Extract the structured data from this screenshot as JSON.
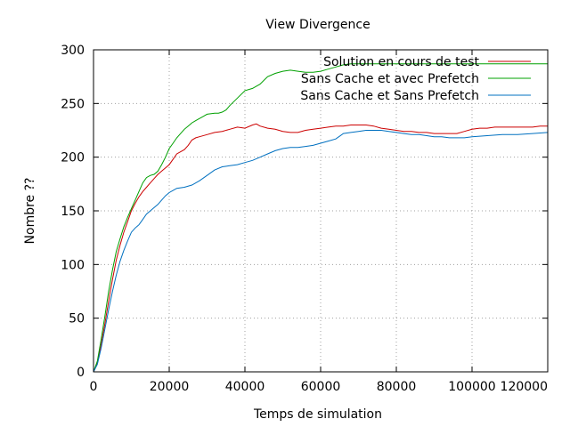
{
  "chart_data": {
    "type": "line",
    "title": "View Divergence",
    "xlabel": "Temps de simulation",
    "ylabel": "Nombre ??",
    "xlim": [
      0,
      120000
    ],
    "ylim": [
      0,
      300
    ],
    "xticks": [
      0,
      20000,
      40000,
      60000,
      80000,
      100000,
      120000
    ],
    "yticks": [
      0,
      50,
      100,
      150,
      200,
      250,
      300
    ],
    "xtick_labels": [
      "0",
      "20000",
      "40000",
      "60000",
      "80000",
      "100000",
      "120000"
    ],
    "ytick_labels": [
      "0",
      "50",
      "100",
      "150",
      "200",
      "250",
      "300"
    ],
    "grid": true,
    "legend_position": "top-right",
    "series": [
      {
        "name": "Solution en cours de test",
        "color": "#cc0000",
        "x": [
          0,
          1000,
          2000,
          3000,
          4000,
          5000,
          6000,
          7000,
          8000,
          9000,
          10000,
          11000,
          12000,
          13000,
          14000,
          15000,
          16000,
          17000,
          18000,
          19000,
          20000,
          21000,
          22000,
          23000,
          24000,
          25000,
          26000,
          27000,
          28000,
          30000,
          32000,
          34000,
          36000,
          38000,
          40000,
          42000,
          43000,
          44000,
          46000,
          48000,
          50000,
          52000,
          54000,
          56000,
          58000,
          60000,
          62000,
          64000,
          66000,
          68000,
          70000,
          72000,
          74000,
          76000,
          78000,
          80000,
          82000,
          84000,
          86000,
          88000,
          90000,
          92000,
          94000,
          96000,
          98000,
          100000,
          102000,
          104000,
          106000,
          108000,
          110000,
          112000,
          114000,
          116000,
          118000,
          120000
        ],
        "y": [
          0,
          8,
          25,
          45,
          66,
          86,
          104,
          118,
          130,
          140,
          150,
          157,
          163,
          168,
          172,
          176,
          180,
          184,
          187,
          190,
          193,
          198,
          203,
          205,
          207,
          211,
          216,
          218,
          219,
          221,
          223,
          224,
          226,
          228,
          227,
          230,
          231,
          229,
          227,
          226,
          224,
          223,
          223,
          225,
          226,
          227,
          228,
          229,
          229,
          230,
          230,
          230,
          229,
          227,
          226,
          225,
          224,
          224,
          223,
          223,
          222,
          222,
          222,
          222,
          224,
          226,
          227,
          227,
          228,
          228,
          228,
          228,
          228,
          228,
          229,
          229
        ]
      },
      {
        "name": "Sans Cache et avec Prefetch",
        "color": "#00a000",
        "x": [
          0,
          1000,
          2000,
          3000,
          4000,
          5000,
          6000,
          7000,
          8000,
          9000,
          10000,
          11000,
          12000,
          13000,
          14000,
          15000,
          16000,
          17000,
          18000,
          19000,
          20000,
          21000,
          22000,
          23000,
          24000,
          25000,
          26000,
          27000,
          28000,
          29000,
          30000,
          32000,
          33000,
          34000,
          35000,
          36000,
          38000,
          40000,
          42000,
          44000,
          46000,
          48000,
          50000,
          52000,
          54000,
          56000,
          58000,
          60000,
          62000,
          64000,
          66000,
          68000,
          70000,
          72000,
          74000,
          76000,
          78000,
          80000,
          85000,
          90000,
          95000,
          100000,
          105000,
          110000,
          115000,
          120000
        ],
        "y": [
          0,
          10,
          30,
          52,
          75,
          95,
          112,
          124,
          135,
          144,
          152,
          160,
          168,
          176,
          181,
          183,
          184,
          187,
          193,
          200,
          208,
          213,
          218,
          222,
          226,
          229,
          232,
          234,
          236,
          238,
          240,
          241,
          241,
          242,
          244,
          248,
          255,
          262,
          264,
          268,
          275,
          278,
          280,
          281,
          280,
          279,
          279,
          280,
          282,
          284,
          286,
          287,
          287,
          287,
          287,
          287,
          287,
          287,
          287,
          287,
          287,
          287,
          287,
          287,
          287,
          287
        ]
      },
      {
        "name": "Sans Cache et Sans Prefetch",
        "color": "#0070c0",
        "x": [
          0,
          1000,
          2000,
          3000,
          4000,
          5000,
          6000,
          7000,
          8000,
          9000,
          10000,
          11000,
          12000,
          13000,
          14000,
          15000,
          16000,
          17000,
          18000,
          19000,
          20000,
          21000,
          22000,
          24000,
          26000,
          28000,
          30000,
          32000,
          34000,
          36000,
          38000,
          40000,
          42000,
          44000,
          46000,
          48000,
          50000,
          52000,
          54000,
          56000,
          58000,
          60000,
          62000,
          64000,
          66000,
          68000,
          70000,
          72000,
          74000,
          76000,
          78000,
          80000,
          82000,
          84000,
          86000,
          88000,
          90000,
          92000,
          94000,
          96000,
          98000,
          100000,
          104000,
          108000,
          112000,
          116000,
          120000
        ],
        "y": [
          0,
          7,
          22,
          40,
          58,
          75,
          90,
          103,
          113,
          122,
          130,
          134,
          137,
          142,
          147,
          150,
          153,
          156,
          160,
          164,
          167,
          169,
          171,
          172,
          174,
          178,
          183,
          188,
          191,
          192,
          193,
          195,
          197,
          200,
          203,
          206,
          208,
          209,
          209,
          210,
          211,
          213,
          215,
          217,
          222,
          223,
          224,
          225,
          225,
          225,
          224,
          223,
          222,
          221,
          221,
          220,
          219,
          219,
          218,
          218,
          218,
          219,
          220,
          221,
          221,
          222,
          223
        ]
      }
    ]
  }
}
